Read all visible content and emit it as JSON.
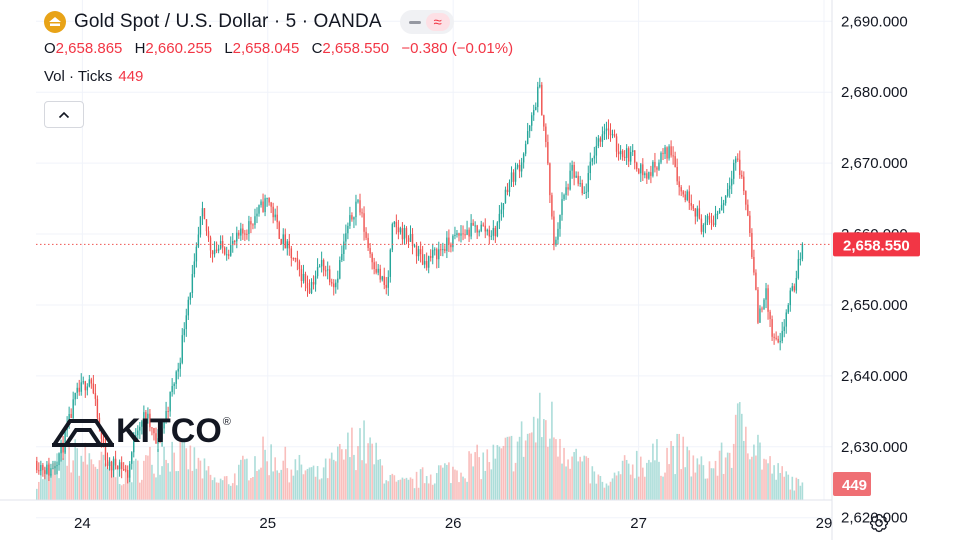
{
  "header": {
    "title": "Gold Spot / U.S. Dollar · 5 · OANDA",
    "icon": "gold-coin-icon",
    "ohlc": {
      "o_label": "O",
      "o_value": "2,658.865",
      "h_label": "H",
      "h_value": "2,660.255",
      "l_label": "L",
      "l_value": "2,658.045",
      "c_label": "C",
      "c_value": "2,658.550",
      "change": "−0.380 (−0.01%)"
    },
    "volume": {
      "label": "Vol · Ticks",
      "value": "449"
    }
  },
  "watermark": {
    "text": "KITCO",
    "mark": "®"
  },
  "colors": {
    "up": "#26a69a",
    "down": "#ef5350",
    "price_label_bg": "#f23645",
    "grid": "#f0f3fa",
    "axis_text": "#131722",
    "gold": "#e8a317"
  },
  "chart_data": {
    "type": "candlestick",
    "title": "Gold Spot / U.S. Dollar · 5 · OANDA",
    "x_ticks": [
      {
        "t": 0.25,
        "label": "24"
      },
      {
        "t": 1.25,
        "label": "25"
      },
      {
        "t": 2.25,
        "label": "26"
      },
      {
        "t": 3.25,
        "label": "27"
      },
      {
        "t": 4.25,
        "label": "29"
      }
    ],
    "x_range": [
      0.0,
      4.25
    ],
    "y_range": [
      2622.5,
      2693.0
    ],
    "y_ticks": [
      {
        "value": 2690,
        "label": "2,690.000"
      },
      {
        "value": 2680,
        "label": "2,680.000"
      },
      {
        "value": 2670,
        "label": "2,670.000"
      },
      {
        "value": 2660,
        "label": "2,660.000"
      },
      {
        "value": 2650,
        "label": "2,650.000"
      },
      {
        "value": 2640,
        "label": "2,640.000"
      },
      {
        "value": 2630,
        "label": "2,630.000"
      },
      {
        "value": 2620,
        "label": "2,620.000"
      }
    ],
    "last_price": {
      "value": 2658.55,
      "label": "2,658.550"
    },
    "last_volume": {
      "value": 449,
      "label": "449"
    },
    "volume_max": 1100,
    "price_path": [
      [
        0.0,
        2628.0
      ],
      [
        0.08,
        2626.5
      ],
      [
        0.15,
        2630.0
      ],
      [
        0.22,
        2637.0
      ],
      [
        0.3,
        2640.0
      ],
      [
        0.35,
        2632.0
      ],
      [
        0.4,
        2627.0
      ],
      [
        0.45,
        2628.0
      ],
      [
        0.5,
        2626.0
      ],
      [
        0.55,
        2633.0
      ],
      [
        0.6,
        2634.5
      ],
      [
        0.66,
        2630.0
      ],
      [
        0.72,
        2636.0
      ],
      [
        0.78,
        2642.0
      ],
      [
        0.82,
        2650.0
      ],
      [
        0.86,
        2655.0
      ],
      [
        0.9,
        2663.0
      ],
      [
        0.95,
        2658.0
      ],
      [
        1.05,
        2658.0
      ],
      [
        1.12,
        2660.0
      ],
      [
        1.2,
        2663.0
      ],
      [
        1.26,
        2665.0
      ],
      [
        1.32,
        2660.0
      ],
      [
        1.4,
        2656.0
      ],
      [
        1.48,
        2652.5
      ],
      [
        1.55,
        2656.0
      ],
      [
        1.62,
        2653.0
      ],
      [
        1.68,
        2660.0
      ],
      [
        1.74,
        2665.0
      ],
      [
        1.8,
        2658.0
      ],
      [
        1.86,
        2654.0
      ],
      [
        1.9,
        2652.0
      ],
      [
        1.93,
        2661.0
      ],
      [
        2.0,
        2660.0
      ],
      [
        2.1,
        2656.0
      ],
      [
        2.2,
        2658.0
      ],
      [
        2.3,
        2660.0
      ],
      [
        2.4,
        2661.0
      ],
      [
        2.48,
        2660.0
      ],
      [
        2.55,
        2667.0
      ],
      [
        2.62,
        2670.0
      ],
      [
        2.68,
        2676.0
      ],
      [
        2.72,
        2681.0
      ],
      [
        2.76,
        2672.0
      ],
      [
        2.8,
        2658.0
      ],
      [
        2.84,
        2664.0
      ],
      [
        2.9,
        2669.0
      ],
      [
        2.96,
        2665.0
      ],
      [
        3.02,
        2672.0
      ],
      [
        3.08,
        2675.5
      ],
      [
        3.14,
        2672.0
      ],
      [
        3.22,
        2671.0
      ],
      [
        3.3,
        2668.0
      ],
      [
        3.38,
        2671.0
      ],
      [
        3.44,
        2672.0
      ],
      [
        3.48,
        2666.0
      ],
      [
        3.54,
        2665.0
      ],
      [
        3.6,
        2661.0
      ],
      [
        3.66,
        2662.0
      ],
      [
        3.72,
        2665.0
      ],
      [
        3.78,
        2671.0
      ],
      [
        3.82,
        2667.0
      ],
      [
        3.86,
        2660.0
      ],
      [
        3.9,
        2648.0
      ],
      [
        3.94,
        2652.0
      ],
      [
        3.98,
        2645.0
      ],
      [
        4.02,
        2644.0
      ],
      [
        4.06,
        2650.0
      ],
      [
        4.1,
        2653.0
      ],
      [
        4.14,
        2658.55
      ]
    ],
    "volume_envelope": [
      [
        0.0,
        280
      ],
      [
        0.1,
        420
      ],
      [
        0.2,
        560
      ],
      [
        0.3,
        520
      ],
      [
        0.4,
        380
      ],
      [
        0.48,
        300
      ],
      [
        0.55,
        420
      ],
      [
        0.62,
        520
      ],
      [
        0.7,
        680
      ],
      [
        0.78,
        560
      ],
      [
        0.85,
        500
      ],
      [
        0.9,
        380
      ],
      [
        0.96,
        230
      ],
      [
        1.05,
        260
      ],
      [
        1.12,
        420
      ],
      [
        1.2,
        560
      ],
      [
        1.28,
        560
      ],
      [
        1.36,
        440
      ],
      [
        1.46,
        380
      ],
      [
        1.52,
        300
      ],
      [
        1.6,
        460
      ],
      [
        1.68,
        640
      ],
      [
        1.74,
        800
      ],
      [
        1.8,
        620
      ],
      [
        1.86,
        420
      ],
      [
        1.94,
        200
      ],
      [
        2.02,
        220
      ],
      [
        2.1,
        320
      ],
      [
        2.18,
        380
      ],
      [
        2.26,
        380
      ],
      [
        2.34,
        480
      ],
      [
        2.42,
        500
      ],
      [
        2.5,
        560
      ],
      [
        2.58,
        680
      ],
      [
        2.66,
        860
      ],
      [
        2.72,
        1000
      ],
      [
        2.78,
        940
      ],
      [
        2.84,
        760
      ],
      [
        2.9,
        560
      ],
      [
        2.96,
        400
      ],
      [
        3.02,
        280
      ],
      [
        3.08,
        160
      ],
      [
        3.14,
        340
      ],
      [
        3.22,
        500
      ],
      [
        3.3,
        520
      ],
      [
        3.38,
        560
      ],
      [
        3.44,
        640
      ],
      [
        3.5,
        540
      ],
      [
        3.58,
        400
      ],
      [
        3.66,
        440
      ],
      [
        3.72,
        560
      ],
      [
        3.78,
        900
      ],
      [
        3.82,
        1000
      ],
      [
        3.86,
        880
      ],
      [
        3.92,
        520
      ],
      [
        3.98,
        360
      ],
      [
        4.04,
        300
      ],
      [
        4.1,
        200
      ],
      [
        4.14,
        150
      ]
    ]
  }
}
